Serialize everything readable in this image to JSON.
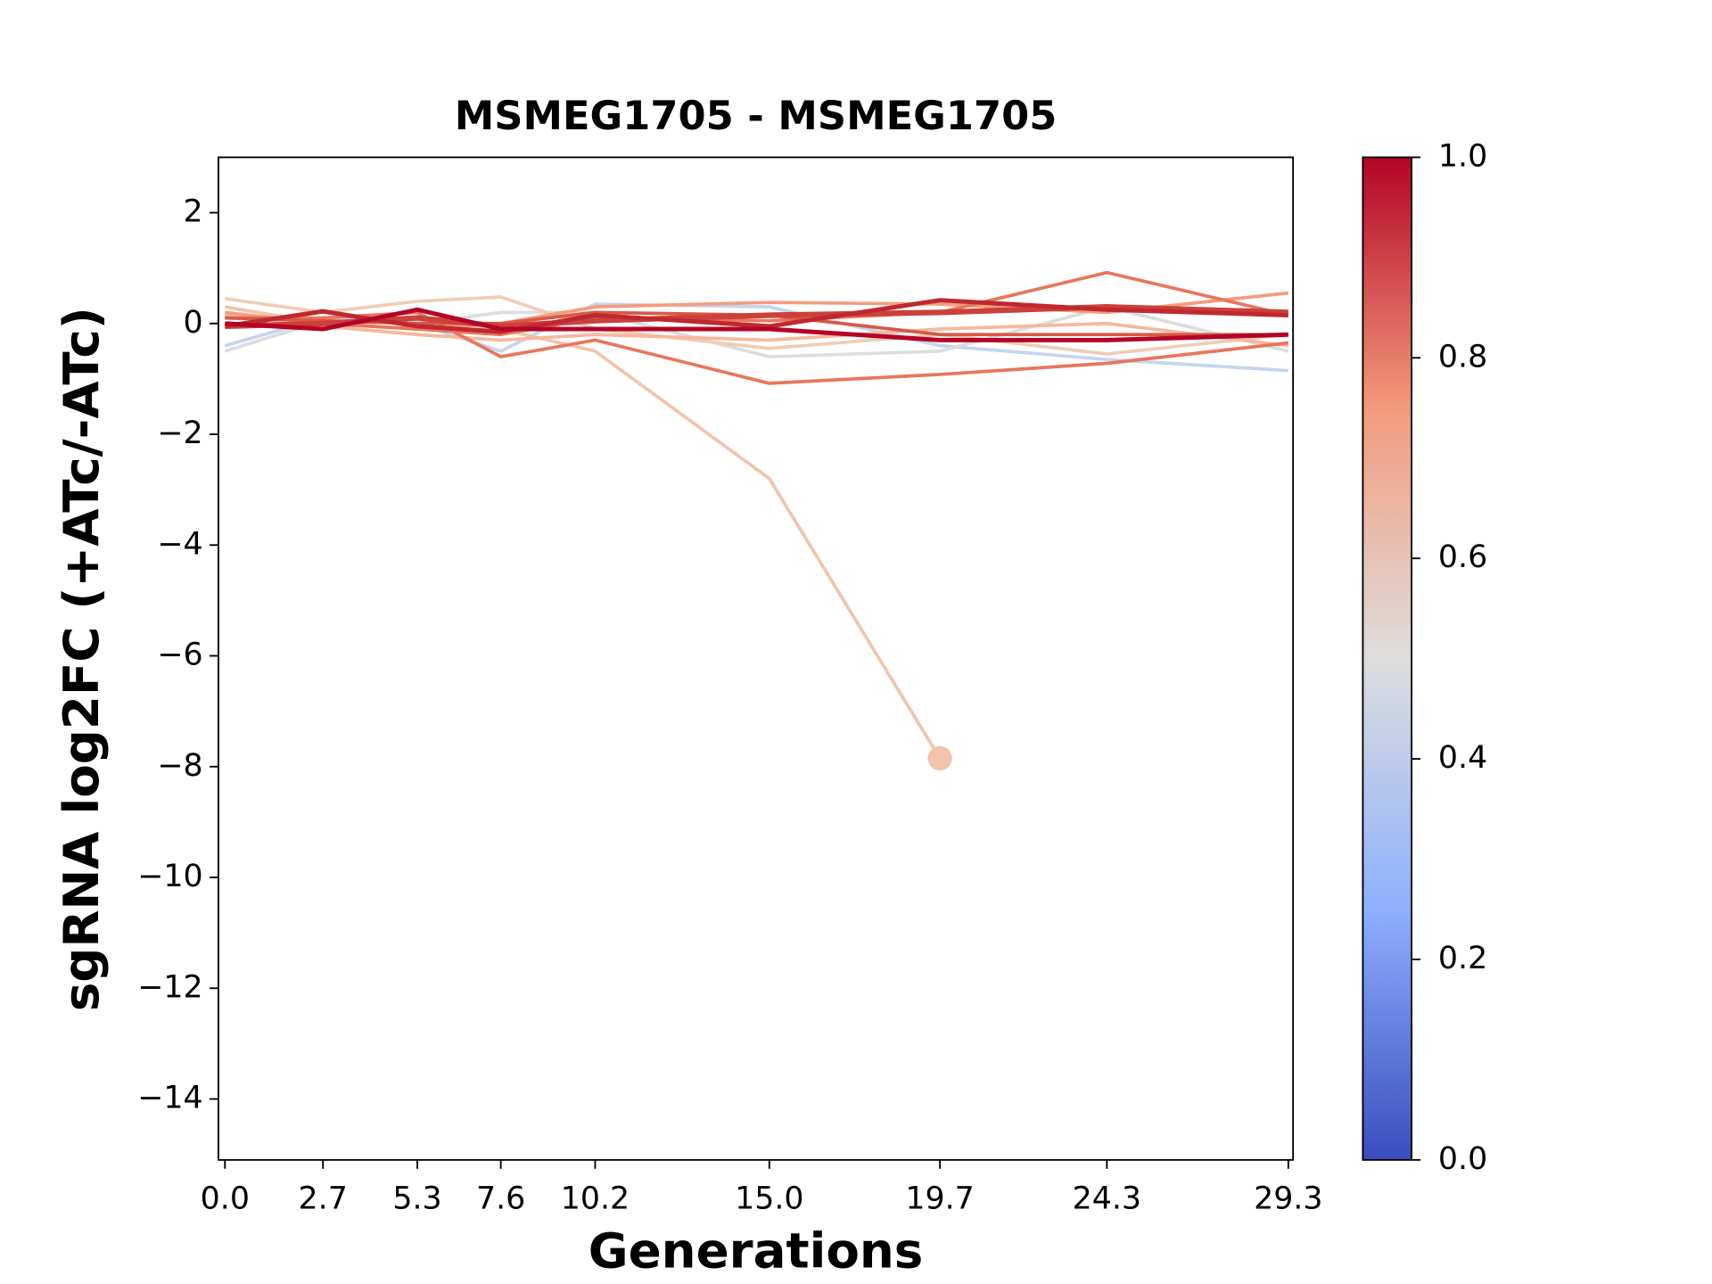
{
  "chart_data": {
    "type": "line",
    "title": "MSMEG1705 - MSMEG1705",
    "xlabel": "Generations",
    "ylabel": "sgRNA log2FC (+ATc/-ATc)",
    "x": [
      0.0,
      2.7,
      5.3,
      7.6,
      10.2,
      15.0,
      19.7,
      24.3,
      29.3
    ],
    "xlim": [
      -0.18,
      29.43
    ],
    "xticks": [
      {
        "value": 0,
        "label": "0.0"
      },
      2.7,
      5.3,
      7.6,
      10.2,
      {
        "value": 15,
        "label": "15.0"
      },
      19.7,
      24.3,
      29.3
    ],
    "ylim": [
      -15.1,
      3
    ],
    "yticks": [
      2,
      0,
      {
        "value": -2,
        "label": "−2"
      },
      {
        "value": -4,
        "label": "−4"
      },
      {
        "value": -6,
        "label": "−6"
      },
      {
        "value": -8,
        "label": "−8"
      },
      {
        "value": -10,
        "label": "−10"
      },
      {
        "value": -12,
        "label": "−12"
      },
      {
        "value": -14,
        "label": "−14"
      }
    ],
    "grid": false,
    "series": [
      {
        "color": "#c5d5ef",
        "linewidth": 3,
        "values": [
          -0.4,
          0.1,
          0,
          -0.5,
          0.35,
          0.3,
          -0.4,
          -0.65,
          -0.85
        ]
      },
      {
        "color": "#dcdddd",
        "linewidth": 3,
        "values": [
          -0.5,
          0.05,
          0,
          0.2,
          0.2,
          -0.6,
          -0.5,
          0.3,
          -0.5
        ]
      },
      {
        "color": "#f0cdb8",
        "linewidth": 3,
        "values": [
          0.45,
          0.2,
          0.4,
          0.48,
          -0.1,
          -0.45,
          -0.2,
          -0.55,
          -0.2
        ]
      },
      {
        "color": "#f2c4ab",
        "linewidth": 3,
        "end_marker": true,
        "values": [
          0.3,
          0,
          -0.1,
          -0.1,
          -0.5,
          -2.8,
          -7.85,
          null,
          null
        ]
      },
      {
        "color": "#f7b89c",
        "linewidth": 3,
        "values": [
          0.15,
          -0.05,
          -0.2,
          -0.3,
          -0.2,
          -0.3,
          -0.1,
          0,
          -0.4
        ]
      },
      {
        "color": "#f59c7d",
        "linewidth": 3,
        "values": [
          0.2,
          0,
          -0.1,
          0,
          0.3,
          0.38,
          0.35,
          0.2,
          0.55
        ]
      },
      {
        "color": "#e8765c",
        "linewidth": 3,
        "values": [
          0.1,
          0.1,
          0.2,
          -0.6,
          -0.3,
          -1.08,
          -0.92,
          -0.72,
          -0.35
        ]
      },
      {
        "color": "#e8765c",
        "linewidth": 3,
        "values": [
          -0.05,
          0,
          -0.1,
          -0.2,
          0.1,
          0.05,
          0.2,
          0.92,
          0.15
        ]
      },
      {
        "color": "#d95847",
        "linewidth": 3,
        "values": [
          0.1,
          0.05,
          0,
          0,
          0.2,
          0.15,
          -0.2,
          -0.2,
          -0.2
        ]
      },
      {
        "color": "#cc403a",
        "linewidth": 5,
        "values": [
          -0.05,
          0,
          0.1,
          -0.05,
          0.05,
          0.15,
          0.2,
          0.3,
          0.2
        ]
      },
      {
        "color": "#c0282f",
        "linewidth": 4,
        "values": [
          -0.05,
          0.22,
          -0.05,
          -0.15,
          0.15,
          -0.05,
          0.42,
          0.25,
          0.15
        ]
      },
      {
        "color": "#b40426",
        "linewidth": 4,
        "values": [
          0,
          -0.1,
          0.25,
          -0.1,
          -0.1,
          -0.1,
          -0.3,
          -0.3,
          -0.2
        ]
      }
    ],
    "colorbar": {
      "colormap": "coolwarm",
      "lim": [
        0,
        1
      ],
      "ticks": [
        {
          "value": 0,
          "label": "0.0"
        },
        0.2,
        0.4,
        0.6,
        0.8,
        {
          "value": 1,
          "label": "1.0"
        }
      ]
    }
  }
}
